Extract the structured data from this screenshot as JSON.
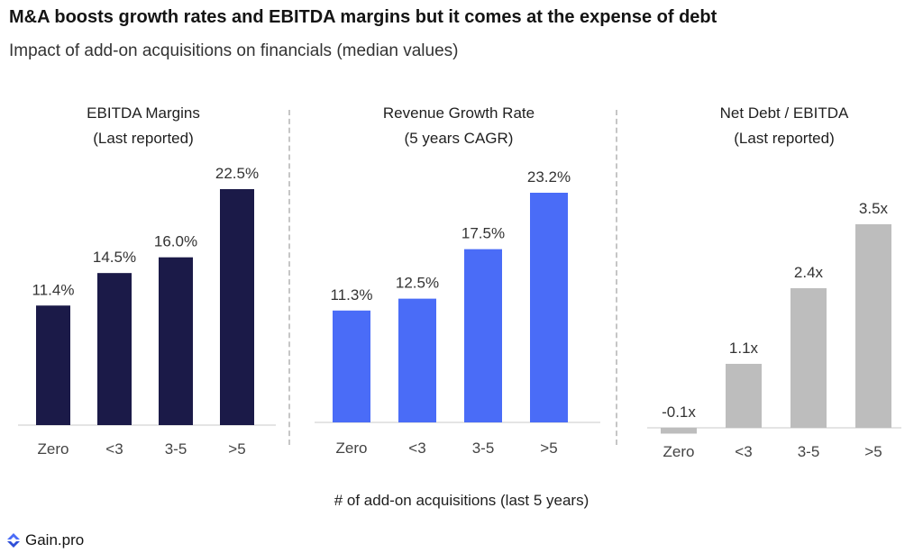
{
  "title": "M&A boosts growth rates and EBITDA margins but it comes at the expense of debt",
  "subtitle": "Impact of add-on acquisitions on financials (median values)",
  "x_axis_title": "# of add-on acquisitions (last 5 years)",
  "logo_text": "Gain.pro",
  "colors": {
    "ebitda": "#1b1a48",
    "revenue": "#4a6cf7",
    "debt": "#bdbdbd",
    "divider": "#c6c6c6",
    "axis": "#c9c9c9"
  },
  "chart_data": [
    {
      "type": "bar",
      "title_lines": [
        "EBITDA Margins",
        "(Last reported)"
      ],
      "categories": [
        "Zero",
        "<3",
        "3-5",
        ">5"
      ],
      "values": [
        11.4,
        14.5,
        16.0,
        22.5
      ],
      "labels": [
        "11.4%",
        "14.5%",
        "16.0%",
        "22.5%"
      ],
      "color_key": "ebitda",
      "ylim": [
        0,
        25
      ]
    },
    {
      "type": "bar",
      "title_lines": [
        "Revenue Growth Rate",
        "(5 years CAGR)"
      ],
      "categories": [
        "Zero",
        "<3",
        "3-5",
        ">5"
      ],
      "values": [
        11.3,
        12.5,
        17.5,
        23.2
      ],
      "labels": [
        "11.3%",
        "12.5%",
        "17.5%",
        "23.2%"
      ],
      "color_key": "revenue",
      "ylim": [
        0,
        25
      ]
    },
    {
      "type": "bar",
      "title_lines": [
        "Net Debt / EBITDA",
        "(Last reported)"
      ],
      "categories": [
        "Zero",
        "<3",
        "3-5",
        ">5"
      ],
      "values": [
        -0.1,
        1.1,
        2.4,
        3.5
      ],
      "labels": [
        "-0.1x",
        "1.1x",
        "2.4x",
        "3.5x"
      ],
      "color_key": "debt",
      "ylim": [
        0,
        4
      ]
    }
  ]
}
